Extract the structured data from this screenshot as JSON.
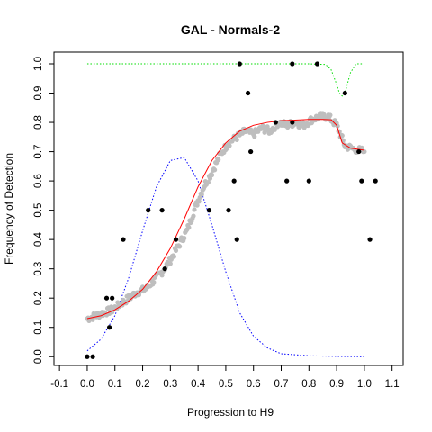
{
  "chart_data": {
    "type": "scatter",
    "title": "GAL - Normals-2",
    "xlabel": "Progression to H9",
    "ylabel": "Frequency of Detection",
    "xlim": [
      -0.12,
      1.14
    ],
    "ylim": [
      -0.03,
      1.04
    ],
    "x_ticks": [
      "-0.1",
      "0.0",
      "0.1",
      "0.2",
      "0.3",
      "0.4",
      "0.5",
      "0.6",
      "0.7",
      "0.8",
      "0.9",
      "1.0",
      "1.1"
    ],
    "y_ticks": [
      "0.0",
      "0.1",
      "0.2",
      "0.3",
      "0.4",
      "0.5",
      "0.6",
      "0.7",
      "0.8",
      "0.9",
      "1.0"
    ],
    "grid": false,
    "colors": {
      "observed": "#000000",
      "smoothed": "#bebebe",
      "fit": "#ff0000",
      "density": "#0000ff",
      "weight": "#00dd00"
    },
    "series": [
      {
        "kind": "points",
        "x": [
          0.0,
          0.02,
          0.07,
          0.09,
          0.08,
          0.13,
          0.22,
          0.27,
          0.28,
          0.32,
          0.44,
          0.51,
          0.53,
          0.54,
          0.55,
          0.58,
          0.59,
          0.68,
          0.72,
          0.74,
          0.74,
          0.8,
          0.83,
          0.93,
          0.98,
          0.99,
          1.02,
          1.04
        ],
        "y": [
          0.0,
          0.0,
          0.2,
          0.2,
          0.1,
          0.4,
          0.5,
          0.5,
          0.3,
          0.4,
          0.5,
          0.5,
          0.6,
          0.4,
          1.0,
          0.9,
          0.7,
          0.8,
          0.6,
          1.0,
          0.8,
          0.6,
          1.0,
          0.9,
          0.7,
          0.6,
          0.4,
          0.6
        ]
      },
      {
        "kind": "smoothed",
        "x": [
          0.0,
          0.03,
          0.06,
          0.09,
          0.12,
          0.15,
          0.18,
          0.21,
          0.24,
          0.27,
          0.3,
          0.33,
          0.36,
          0.39,
          0.42,
          0.45,
          0.48,
          0.51,
          0.54,
          0.57,
          0.6,
          0.63,
          0.66,
          0.69,
          0.72,
          0.75,
          0.78,
          0.81,
          0.84,
          0.87,
          0.9,
          0.93,
          0.96,
          1.0
        ],
        "y": [
          0.13,
          0.14,
          0.15,
          0.16,
          0.18,
          0.2,
          0.22,
          0.23,
          0.26,
          0.29,
          0.33,
          0.38,
          0.43,
          0.51,
          0.58,
          0.63,
          0.69,
          0.73,
          0.75,
          0.77,
          0.76,
          0.78,
          0.77,
          0.8,
          0.79,
          0.8,
          0.79,
          0.81,
          0.82,
          0.82,
          0.79,
          0.72,
          0.71,
          0.7
        ]
      },
      {
        "kind": "fit",
        "x": [
          0.0,
          0.05,
          0.1,
          0.15,
          0.2,
          0.25,
          0.3,
          0.35,
          0.4,
          0.45,
          0.5,
          0.55,
          0.6,
          0.65,
          0.7,
          0.75,
          0.8,
          0.85,
          0.88,
          0.9,
          0.92,
          0.95,
          1.0
        ],
        "y": [
          0.13,
          0.14,
          0.16,
          0.19,
          0.23,
          0.29,
          0.37,
          0.47,
          0.58,
          0.67,
          0.73,
          0.77,
          0.79,
          0.8,
          0.806,
          0.808,
          0.81,
          0.81,
          0.809,
          0.79,
          0.73,
          0.712,
          0.705
        ]
      },
      {
        "kind": "density",
        "x": [
          0.0,
          0.05,
          0.1,
          0.15,
          0.2,
          0.25,
          0.3,
          0.35,
          0.4,
          0.45,
          0.5,
          0.55,
          0.6,
          0.65,
          0.7,
          0.8,
          0.9,
          1.0
        ],
        "y": [
          0.02,
          0.06,
          0.14,
          0.27,
          0.43,
          0.58,
          0.67,
          0.68,
          0.6,
          0.45,
          0.29,
          0.15,
          0.07,
          0.03,
          0.01,
          0.003,
          0.001,
          0.0
        ]
      },
      {
        "kind": "weight",
        "x": [
          0.0,
          0.2,
          0.4,
          0.6,
          0.8,
          0.86,
          0.88,
          0.9,
          0.91,
          0.92,
          0.93,
          0.95,
          0.97,
          1.0
        ],
        "y": [
          1.0,
          1.0,
          1.0,
          1.0,
          1.0,
          0.998,
          0.98,
          0.93,
          0.9,
          0.89,
          0.9,
          0.97,
          1.0,
          1.0
        ]
      }
    ]
  }
}
